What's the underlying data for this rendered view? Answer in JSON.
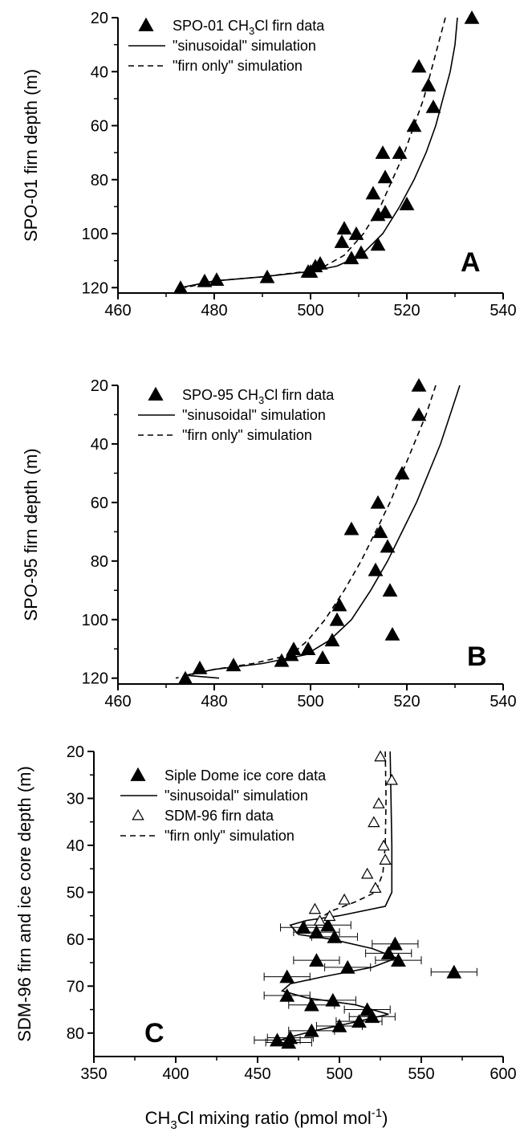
{
  "chart_data": [
    {
      "type": "scatter",
      "panel_label": "A",
      "xlabel": "",
      "ylabel": "SPO-01 firn depth (m)",
      "xlim": [
        460,
        540
      ],
      "ylim": [
        20,
        122
      ],
      "y_inverted": true,
      "xticks": [
        460,
        480,
        500,
        520,
        540
      ],
      "yticks": [
        20,
        40,
        60,
        80,
        100,
        120
      ],
      "legend": {
        "position": "top-left"
      },
      "series": [
        {
          "name": "SPO-01 CH3Cl firn data",
          "name_parts": {
            "pre": "SPO-01 CH",
            "sub": "3",
            "post": "Cl firn data"
          },
          "kind": "points",
          "marker": "filled-triangle",
          "points": [
            [
              533.5,
              20
            ],
            [
              522.5,
              38
            ],
            [
              524.5,
              45
            ],
            [
              525.5,
              53
            ],
            [
              521.5,
              60
            ],
            [
              515,
              70
            ],
            [
              518.5,
              70
            ],
            [
              515.5,
              79
            ],
            [
              513,
              85
            ],
            [
              520,
              89
            ],
            [
              514,
              93
            ],
            [
              515.5,
              92
            ],
            [
              514,
              104
            ],
            [
              507,
              98
            ],
            [
              509.5,
              100
            ],
            [
              506.5,
              103
            ],
            [
              510.5,
              107
            ],
            [
              508.5,
              109
            ],
            [
              501,
              112
            ],
            [
              502,
              111
            ],
            [
              500,
              114
            ],
            [
              499.5,
              114
            ],
            [
              491,
              116
            ],
            [
              480.5,
              117
            ],
            [
              478,
              117.5
            ],
            [
              473,
              120
            ]
          ]
        },
        {
          "name": "\"sinusoidal\" simulation",
          "kind": "line",
          "dash": "solid",
          "points": [
            [
              530.5,
              20
            ],
            [
              530,
              30
            ],
            [
              529,
              40
            ],
            [
              527.5,
              50
            ],
            [
              526,
              60
            ],
            [
              524,
              70
            ],
            [
              521.5,
              80
            ],
            [
              518.5,
              90
            ],
            [
              515,
              100
            ],
            [
              510.5,
              108
            ],
            [
              505.5,
              112
            ],
            [
              500,
              114
            ],
            [
              490,
              116
            ],
            [
              480,
              117.5
            ],
            [
              473,
              120
            ]
          ]
        },
        {
          "name": "\"firn only\" simulation",
          "kind": "line",
          "dash": "dashed",
          "points": [
            [
              528,
              20
            ],
            [
              526.5,
              30
            ],
            [
              525,
              40
            ],
            [
              523.5,
              50
            ],
            [
              521.5,
              60
            ],
            [
              519.5,
              70
            ],
            [
              517,
              80
            ],
            [
              514.5,
              90
            ],
            [
              511,
              100
            ],
            [
              507,
              108
            ],
            [
              503,
              112
            ],
            [
              499,
              114
            ],
            [
              490,
              116
            ],
            [
              480,
              117.5
            ],
            [
              474,
              120
            ]
          ]
        }
      ]
    },
    {
      "type": "scatter",
      "panel_label": "B",
      "xlabel": "",
      "ylabel": "SPO-95 firn depth (m)",
      "xlim": [
        460,
        540
      ],
      "ylim": [
        20,
        122
      ],
      "y_inverted": true,
      "xticks": [
        460,
        480,
        500,
        520,
        540
      ],
      "yticks": [
        20,
        40,
        60,
        80,
        100,
        120
      ],
      "legend": {
        "position": "top-left"
      },
      "series": [
        {
          "name": "SPO-95 CH3Cl firn data",
          "name_parts": {
            "pre": "SPO-95 CH",
            "sub": "3",
            "post": "Cl firn data"
          },
          "kind": "points",
          "marker": "filled-triangle",
          "points": [
            [
              522.5,
              20
            ],
            [
              522.5,
              30
            ],
            [
              519,
              50
            ],
            [
              514,
              60
            ],
            [
              508.5,
              69
            ],
            [
              514.5,
              70
            ],
            [
              516,
              75
            ],
            [
              513.5,
              83
            ],
            [
              516.5,
              90
            ],
            [
              506,
              95
            ],
            [
              505.5,
              100
            ],
            [
              517,
              105
            ],
            [
              504.5,
              107
            ],
            [
              496.5,
              110
            ],
            [
              496,
              112
            ],
            [
              499.5,
              110
            ],
            [
              502.5,
              113
            ],
            [
              494,
              114
            ],
            [
              484,
              115.5
            ],
            [
              477,
              116.5
            ],
            [
              474,
              120
            ]
          ]
        },
        {
          "name": "\"sinusoidal\" simulation",
          "kind": "line",
          "dash": "solid",
          "points": [
            [
              531,
              20
            ],
            [
              529,
              30
            ],
            [
              527,
              40
            ],
            [
              524.5,
              50
            ],
            [
              522,
              60
            ],
            [
              519,
              70
            ],
            [
              516,
              80
            ],
            [
              512.5,
              90
            ],
            [
              508.5,
              100
            ],
            [
              504,
              107
            ],
            [
              499,
              112
            ],
            [
              490,
              115
            ],
            [
              480,
              117
            ],
            [
              474,
              119
            ],
            [
              481,
              120
            ]
          ]
        },
        {
          "name": "\"firn only\" simulation",
          "kind": "line",
          "dash": "dashed",
          "points": [
            [
              526,
              20
            ],
            [
              524,
              30
            ],
            [
              521.5,
              40
            ],
            [
              519,
              50
            ],
            [
              516.5,
              60
            ],
            [
              513.5,
              70
            ],
            [
              510.5,
              80
            ],
            [
              507,
              90
            ],
            [
              503,
              100
            ],
            [
              499.5,
              107
            ],
            [
              496,
              112
            ],
            [
              488,
              115
            ],
            [
              480,
              117
            ],
            [
              472,
              120
            ]
          ]
        }
      ]
    },
    {
      "type": "scatter",
      "panel_label": "C",
      "xlabel": "CH3Cl mixing ratio (pmol mol-1)",
      "xlabel_parts": {
        "pre": "CH",
        "sub": "3",
        "mid": "Cl mixing ratio (pmol mol",
        "sup": "-1",
        "post": ")"
      },
      "ylabel": "SDM-96 firn and ice core depth (m)",
      "xlim": [
        350,
        600
      ],
      "ylim": [
        20,
        85
      ],
      "y_inverted": true,
      "xticks": [
        350,
        400,
        450,
        500,
        550,
        600
      ],
      "yticks": [
        20,
        30,
        40,
        50,
        60,
        70,
        80
      ],
      "legend": {
        "position": "top-left"
      },
      "series": [
        {
          "name": "Siple Dome ice core data",
          "kind": "points",
          "marker": "filled-triangle",
          "xerr": 14,
          "points": [
            [
              478,
              57.5
            ],
            [
              493,
              57
            ],
            [
              486,
              58.5
            ],
            [
              497,
              59.5
            ],
            [
              534,
              61
            ],
            [
              530,
              63
            ],
            [
              536,
              64.5
            ],
            [
              486,
              64.5
            ],
            [
              505,
              66
            ],
            [
              570,
              67
            ],
            [
              468,
              68
            ],
            [
              468,
              72
            ],
            [
              496,
              73
            ],
            [
              483,
              74
            ],
            [
              517,
              75
            ],
            [
              520,
              76.5
            ],
            [
              512,
              77.5
            ],
            [
              500,
              78.5
            ],
            [
              483,
              79.5
            ],
            [
              470,
              81
            ],
            [
              462,
              81.5
            ],
            [
              469,
              82
            ]
          ]
        },
        {
          "name": "\"sinusoidal\" simulation",
          "kind": "line",
          "dash": "solid",
          "points": [
            [
              531,
              20
            ],
            [
              532,
              40
            ],
            [
              532,
              50
            ],
            [
              528,
              53
            ],
            [
              500,
              55
            ],
            [
              480,
              56
            ],
            [
              470,
              57
            ],
            [
              475,
              59
            ],
            [
              495,
              60
            ],
            [
              520,
              62
            ],
            [
              535,
              64
            ],
            [
              520,
              66
            ],
            [
              490,
              68
            ],
            [
              470,
              69.5
            ],
            [
              465,
              71
            ],
            [
              480,
              72.5
            ],
            [
              510,
              74
            ],
            [
              530,
              76
            ],
            [
              505,
              78
            ],
            [
              485,
              79.5
            ],
            [
              468,
              81
            ],
            [
              460,
              82
            ],
            [
              470,
              82.5
            ]
          ]
        },
        {
          "name": "SDM-96 firn data",
          "kind": "points",
          "marker": "open-triangle",
          "points": [
            [
              525,
              21
            ],
            [
              532,
              26
            ],
            [
              524,
              31
            ],
            [
              521,
              35
            ],
            [
              527,
              40
            ],
            [
              528,
              43
            ],
            [
              517,
              46
            ],
            [
              522,
              49
            ],
            [
              503,
              51.5
            ],
            [
              485,
              53.5
            ],
            [
              494,
              55
            ],
            [
              488,
              56
            ]
          ]
        },
        {
          "name": "\"firn only\" simulation",
          "kind": "line",
          "dash": "dashed",
          "points": [
            [
              528,
              20
            ],
            [
              528.5,
              30
            ],
            [
              528,
              40
            ],
            [
              526.5,
              46
            ],
            [
              522,
              50
            ],
            [
              510,
              52
            ],
            [
              495,
              54
            ],
            [
              486,
              56
            ]
          ]
        }
      ]
    }
  ]
}
